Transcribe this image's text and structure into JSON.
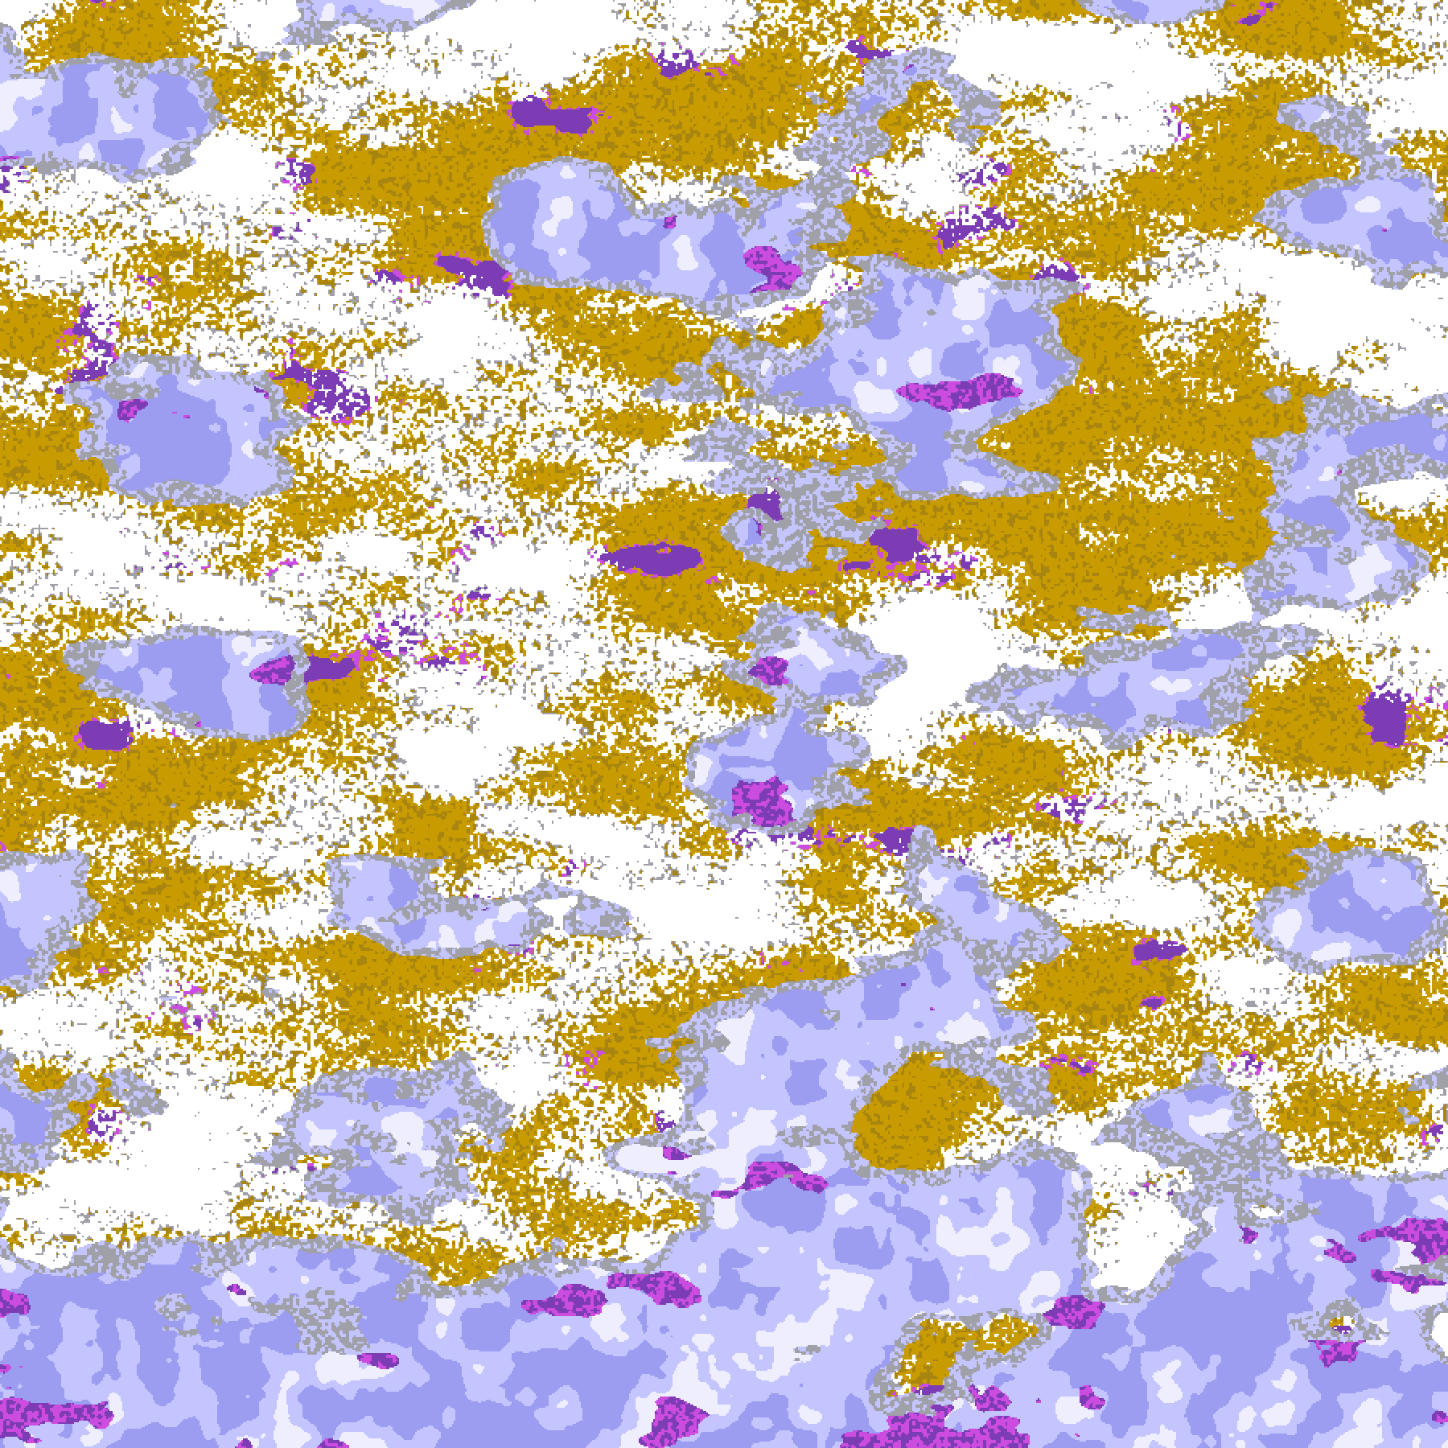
{
  "map": {
    "palette": {
      "background": "#ffffff",
      "gold": "#c89c00",
      "gold_dark": "#a88410",
      "gray": "#a0a0a8",
      "lavender": "#c4c4ff",
      "periwinkle": "#9c9cf0",
      "pale": "#eeeeff",
      "purple": "#7c3cb4",
      "magenta": "#cc4ce0"
    }
  }
}
